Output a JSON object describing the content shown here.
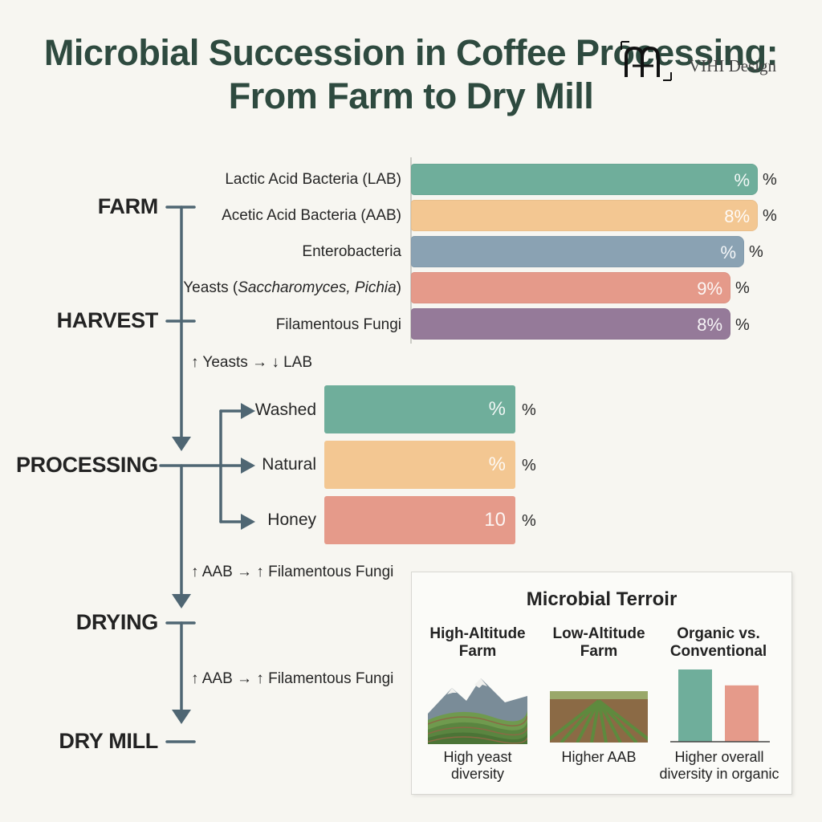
{
  "title": {
    "line1": "Microbial Succession in Coffee Processing:",
    "line2": "From Farm to Dry Mill"
  },
  "watermark": {
    "text": "VIHI Design"
  },
  "stages": [
    "FARM",
    "HARVEST",
    "PROCESSING",
    "DRYING",
    "DRY MILL"
  ],
  "microbes": [
    {
      "label": "Lactic Acid Bacteria (LAB)",
      "value": "%",
      "unit": "%",
      "color": "#6fae9b"
    },
    {
      "label": "Acetic Acid Bacteria (AAB)",
      "value": "8%",
      "unit": "%",
      "color": "#f3c792"
    },
    {
      "label": "Enterobacteria",
      "value": "%",
      "unit": "%",
      "color": "#8aa2b3"
    },
    {
      "label_prefix": "Yeasts (",
      "label_italic": "Saccharomyces, Pichia",
      "label_suffix": ")",
      "value": "9%",
      "unit": "%",
      "color": "#e59a8a"
    },
    {
      "label": "Filamentous Fungi",
      "value": "8%",
      "unit": "%",
      "color": "#957a99"
    }
  ],
  "processing_methods": [
    {
      "label": "Washed",
      "value": "%",
      "unit": "%",
      "color": "#6fae9b"
    },
    {
      "label": "Natural",
      "value": "%",
      "unit": "%",
      "color": "#f3c792"
    },
    {
      "label": "Honey",
      "value": "10",
      "unit": "%",
      "color": "#e59a8a"
    }
  ],
  "annotations": {
    "harvest_to_processing": "↑ Yeasts → ↓ LAB",
    "processing_to_drying": "↑ AAB → ↑ Filamentous Fungi",
    "drying_to_dry_mill": "↑ AAB → ↑ Filamentous Fungi"
  },
  "terroir": {
    "title": "Microbial Terroir",
    "columns": [
      {
        "head_line1": "High-Altitude",
        "head_line2": "Farm",
        "foot_line1": "High yeast",
        "foot_line2": "diversity"
      },
      {
        "head_line1": "Low-Altitude",
        "head_line2": "Farm",
        "foot_line1": "Higher AAB",
        "foot_line2": ""
      },
      {
        "head_line1": "Organic vs.",
        "head_line2": "Conventional",
        "foot_line1": "Higher overall",
        "foot_line2": "diversity in organic"
      }
    ],
    "comparison_bars": [
      {
        "value": 1.0,
        "color": "#6fae9b"
      },
      {
        "value": 0.78,
        "color": "#e59a8a"
      }
    ]
  },
  "colors": {
    "title": "#2e4a3f",
    "flow_line": "#4f6673",
    "background": "#f7f6f1"
  }
}
